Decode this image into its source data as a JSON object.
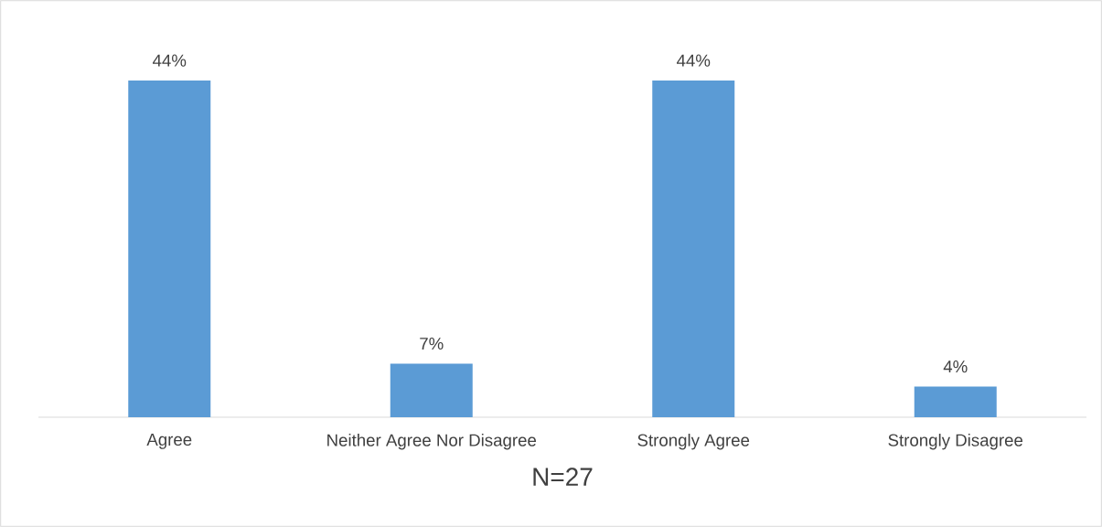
{
  "chart_data": {
    "type": "bar",
    "xlabel": "N=27",
    "categories": [
      "Agree",
      "Neither Agree Nor Disagree",
      "Strongly Agree",
      "Strongly Disagree"
    ],
    "values": [
      44,
      7,
      44,
      4
    ],
    "value_labels": [
      "44%",
      "7%",
      "44%",
      "4%"
    ],
    "color": "#5b9bd5"
  }
}
